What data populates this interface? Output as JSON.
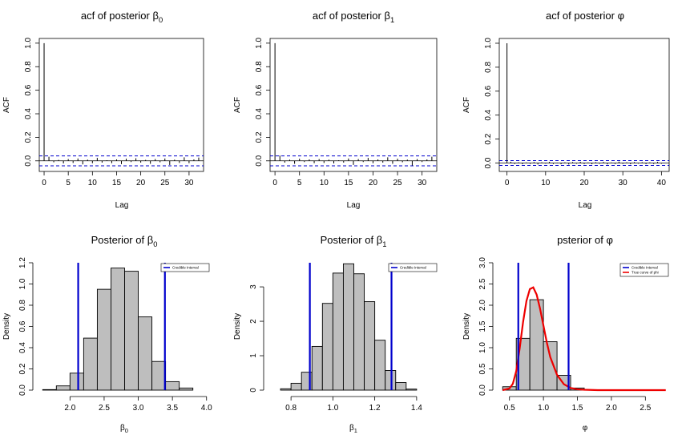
{
  "chart_data": [
    {
      "id": "acf_b0",
      "type": "acf",
      "title": "acf of posterior",
      "title_symbol": "β",
      "title_sub": "0",
      "xlabel": "Lag",
      "ylabel": "ACF",
      "xlim": [
        -1,
        33
      ],
      "ylim": [
        -0.09,
        1.04
      ],
      "xticks": [
        0,
        5,
        10,
        15,
        20,
        25,
        30
      ],
      "yticks": [
        0.0,
        0.2,
        0.4,
        0.6,
        0.8,
        1.0
      ],
      "ytick_labels": [
        "0.0",
        "0.2",
        "0.4",
        "0.6",
        "0.8",
        "1.0"
      ],
      "ci": 0.042,
      "lags": [
        0,
        1,
        2,
        3,
        4,
        5,
        6,
        7,
        8,
        9,
        10,
        11,
        12,
        13,
        14,
        15,
        16,
        17,
        18,
        19,
        20,
        21,
        22,
        23,
        24,
        25,
        26,
        27,
        28,
        29,
        30,
        31,
        32
      ],
      "values": [
        1.0,
        0.035,
        -0.012,
        0.008,
        -0.022,
        0.015,
        -0.018,
        0.02,
        -0.03,
        0.01,
        -0.02,
        0.025,
        -0.015,
        0.005,
        -0.02,
        0.012,
        -0.028,
        0.018,
        -0.01,
        0.022,
        -0.015,
        0.008,
        -0.025,
        0.015,
        -0.012,
        0.02,
        -0.035,
        0.01,
        -0.018,
        0.03,
        -0.02,
        0.012,
        0.028
      ]
    },
    {
      "id": "acf_b1",
      "type": "acf",
      "title": "acf of posterior",
      "title_symbol": "β",
      "title_sub": "1",
      "xlabel": "Lag",
      "ylabel": "ACF",
      "xlim": [
        -1,
        33
      ],
      "ylim": [
        -0.09,
        1.04
      ],
      "xticks": [
        0,
        5,
        10,
        15,
        20,
        25,
        30
      ],
      "yticks": [
        0.0,
        0.2,
        0.4,
        0.6,
        0.8,
        1.0
      ],
      "ytick_labels": [
        "0.0",
        "0.2",
        "0.4",
        "0.6",
        "0.8",
        "1.0"
      ],
      "ci": 0.042,
      "lags": [
        0,
        1,
        2,
        3,
        4,
        5,
        6,
        7,
        8,
        9,
        10,
        11,
        12,
        13,
        14,
        15,
        16,
        17,
        18,
        19,
        20,
        21,
        22,
        23,
        24,
        25,
        26,
        27,
        28,
        29,
        30,
        31,
        32
      ],
      "values": [
        1.0,
        0.045,
        -0.015,
        0.01,
        -0.025,
        0.018,
        -0.01,
        0.012,
        -0.02,
        0.015,
        -0.018,
        0.01,
        -0.022,
        0.005,
        -0.015,
        0.02,
        -0.035,
        0.015,
        -0.01,
        0.025,
        -0.02,
        0.012,
        -0.015,
        0.03,
        -0.025,
        0.018,
        -0.012,
        0.01,
        -0.04,
        0.015,
        -0.01,
        0.012,
        0.035
      ]
    },
    {
      "id": "acf_phi",
      "type": "acf",
      "title": "acf of posterior",
      "title_symbol": "φ",
      "title_sub": "",
      "xlabel": "Lag",
      "ylabel": "ACF",
      "xlim": [
        -2,
        42
      ],
      "ylim": [
        -0.07,
        1.04
      ],
      "xticks": [
        0,
        10,
        20,
        30,
        40
      ],
      "yticks": [
        0.0,
        0.2,
        0.4,
        0.6,
        0.8,
        1.0
      ],
      "ytick_labels": [
        "0.0",
        "0.2",
        "0.4",
        "0.6",
        "0.8",
        "1.0"
      ],
      "ci": 0.02,
      "lags": [
        0,
        1,
        2,
        3,
        4,
        5,
        6,
        7,
        8,
        9,
        10,
        11,
        12,
        13,
        14,
        15,
        16,
        17,
        18,
        19,
        20,
        21,
        22,
        23,
        24,
        25,
        26,
        27,
        28,
        29,
        30,
        31,
        32,
        33,
        34,
        35,
        36,
        37,
        38,
        39,
        40
      ],
      "values": [
        1.0,
        0.01,
        -0.008,
        0.006,
        -0.01,
        0.005,
        -0.007,
        0.008,
        -0.012,
        0.006,
        -0.005,
        0.01,
        -0.008,
        0.004,
        -0.01,
        0.006,
        -0.012,
        0.008,
        -0.006,
        0.01,
        -0.008,
        0.005,
        -0.01,
        0.007,
        -0.006,
        0.009,
        -0.011,
        0.005,
        -0.008,
        0.012,
        -0.007,
        0.006,
        -0.01,
        0.008,
        -0.005,
        0.007,
        -0.009,
        0.006,
        -0.008,
        0.01,
        -0.006
      ]
    },
    {
      "id": "post_b0",
      "type": "histogram",
      "title": "Posterior of",
      "title_symbol": "β",
      "title_sub": "0",
      "xlabel": "β",
      "xlabel_sub": "0",
      "ylabel": "Density",
      "xlim": [
        1.55,
        4.05
      ],
      "ylim": [
        0,
        1.2
      ],
      "xticks": [
        2.0,
        2.5,
        3.0,
        3.5,
        4.0
      ],
      "xtick_labels": [
        "2.0",
        "2.5",
        "3.0",
        "3.5",
        "4.0"
      ],
      "yticks": [
        0.0,
        0.2,
        0.4,
        0.6,
        0.8,
        1.0,
        1.2
      ],
      "ytick_labels": [
        "0.0",
        "0.2",
        "0.4",
        "0.6",
        "0.8",
        "1.0",
        "1.2"
      ],
      "bins": [
        1.6,
        1.8,
        2.0,
        2.2,
        2.4,
        2.6,
        2.8,
        3.0,
        3.2,
        3.4,
        3.6,
        3.8
      ],
      "densities": [
        0.005,
        0.04,
        0.16,
        0.49,
        0.95,
        1.15,
        1.12,
        0.69,
        0.27,
        0.08,
        0.02
      ],
      "ci": [
        2.12,
        3.39
      ],
      "legend": [
        "Credible Interval"
      ]
    },
    {
      "id": "post_b1",
      "type": "histogram",
      "title": "Posterior of",
      "title_symbol": "β",
      "title_sub": "1",
      "xlabel": "β",
      "xlabel_sub": "1",
      "ylabel": "Density",
      "xlim": [
        0.7,
        1.5
      ],
      "ylim": [
        0,
        3.7
      ],
      "xticks": [
        0.8,
        1.0,
        1.2,
        1.4
      ],
      "xtick_labels": [
        "0.8",
        "1.0",
        "1.2",
        "1.4"
      ],
      "yticks": [
        0,
        1,
        2,
        3
      ],
      "ytick_labels": [
        "0",
        "1",
        "2",
        "3"
      ],
      "bins": [
        0.75,
        0.8,
        0.85,
        0.9,
        0.95,
        1.0,
        1.05,
        1.1,
        1.15,
        1.2,
        1.25,
        1.3,
        1.35,
        1.4
      ],
      "densities": [
        0.04,
        0.2,
        0.52,
        1.27,
        2.52,
        3.4,
        3.67,
        3.38,
        2.57,
        1.45,
        0.57,
        0.22,
        0.03
      ],
      "ci": [
        0.89,
        1.28
      ],
      "legend": [
        "Credible Interval"
      ]
    },
    {
      "id": "post_phi",
      "type": "histogram",
      "title": "psterior of",
      "title_symbol": "φ",
      "title_sub": "",
      "xlabel": "φ",
      "xlabel_sub": "",
      "ylabel": "Density",
      "xlim": [
        0.35,
        2.85
      ],
      "ylim": [
        0,
        3.0
      ],
      "xticks": [
        0.5,
        1.0,
        1.5,
        2.0,
        2.5
      ],
      "xtick_labels": [
        "0.5",
        "1.0",
        "1.5",
        "2.0",
        "2.5"
      ],
      "yticks": [
        0.0,
        0.5,
        1.0,
        1.5,
        2.0,
        2.5,
        3.0
      ],
      "ytick_labels": [
        "0.0",
        "0.5",
        "1.0",
        "1.5",
        "2.0",
        "2.5",
        "3.0"
      ],
      "bins": [
        0.4,
        0.6,
        0.8,
        1.0,
        1.2,
        1.4,
        1.6,
        1.8
      ],
      "densities": [
        0.08,
        1.22,
        2.13,
        1.14,
        0.35,
        0.05,
        0.01
      ],
      "ci": [
        0.63,
        1.37
      ],
      "curve": {
        "x": [
          0.4,
          0.5,
          0.55,
          0.6,
          0.65,
          0.7,
          0.75,
          0.8,
          0.85,
          0.9,
          0.95,
          1.0,
          1.05,
          1.1,
          1.2,
          1.3,
          1.4,
          1.5,
          1.6,
          1.8,
          2.0,
          2.2,
          2.5,
          2.8
        ],
        "y": [
          0.0,
          0.04,
          0.15,
          0.45,
          0.98,
          1.6,
          2.1,
          2.38,
          2.42,
          2.25,
          1.92,
          1.52,
          1.12,
          0.78,
          0.36,
          0.14,
          0.05,
          0.02,
          0.01,
          0.0,
          0.0,
          0.0,
          0.0,
          0.0
        ]
      },
      "legend": [
        "Credible Interval",
        "True curve of  phi"
      ]
    }
  ],
  "colors": {
    "ci_line": "#0000cd",
    "curve": "#ee0000",
    "bar_fill": "#bebebe",
    "acf_ci": "#0000cd"
  }
}
